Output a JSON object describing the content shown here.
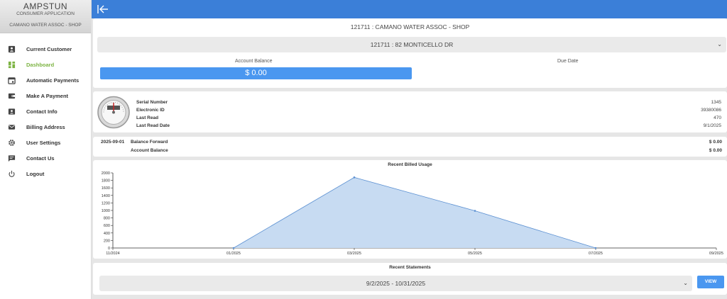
{
  "brand": {
    "name": "AMPSTUN",
    "subtitle": "CONSUMER APPLICATION",
    "customer": "CAMANO WATER ASSOC - SHOP"
  },
  "nav": {
    "items": [
      {
        "label": "Current Customer",
        "icon": "account-box-icon",
        "active": false
      },
      {
        "label": "Dashboard",
        "icon": "dashboard-icon",
        "active": true
      },
      {
        "label": "Automatic Payments",
        "icon": "calendar-icon",
        "active": false
      },
      {
        "label": "Make A Payment",
        "icon": "wallet-icon",
        "active": false
      },
      {
        "label": "Contact Info",
        "icon": "contact-card-icon",
        "active": false
      },
      {
        "label": "Billing Address",
        "icon": "mail-icon",
        "active": false
      },
      {
        "label": "User Settings",
        "icon": "gear-icon",
        "active": false
      },
      {
        "label": "Contact Us",
        "icon": "chat-icon",
        "active": false
      },
      {
        "label": "Logout",
        "icon": "power-icon",
        "active": false
      }
    ]
  },
  "header": {
    "customer_title": "121711 : CAMANO WATER ASSOC - SHOP",
    "address_selected": "121711 : 82 MONTICELLO DR",
    "balance_label": "Account Balance",
    "balance_value": "$ 0.00",
    "due_label": "Due Date"
  },
  "meter": {
    "rows": [
      {
        "label": "Serial Number",
        "value": "1345"
      },
      {
        "label": "Electronic ID",
        "value": "39380086"
      },
      {
        "label": "Last Read",
        "value": "470"
      },
      {
        "label": "Last Read Date",
        "value": "9/1/2025"
      }
    ]
  },
  "balance": {
    "date": "2025-09-01",
    "rows": [
      {
        "label": "Balance Forward",
        "amount": "$ 0.00"
      },
      {
        "label": "Account Balance",
        "amount": "$ 0.00"
      }
    ]
  },
  "chart_data": {
    "type": "area",
    "title": "Recent Billed Usage",
    "xlabel": "",
    "ylabel": "",
    "x": [
      "11/2024",
      "01/2025",
      "03/2025",
      "05/2025",
      "07/2025",
      "09/2025"
    ],
    "series": [
      {
        "values": [
          null,
          0,
          1880,
          990,
          0,
          null
        ]
      }
    ],
    "yticks": [
      0,
      200,
      400,
      600,
      800,
      1000,
      1200,
      1400,
      1600,
      1800,
      2000
    ],
    "ylim": [
      0,
      2000
    ],
    "grid": false,
    "legend": "none",
    "fill_color": "#c7dbf2",
    "line_color": "#5a8fd1"
  },
  "statements": {
    "title": "Recent Statements",
    "selected": "9/2/2025 - 10/31/2025",
    "view_label": "VIEW"
  },
  "colors": {
    "topbar": "#3b7fd8",
    "accent": "#4a97f0",
    "active_nav": "#7cb342"
  }
}
